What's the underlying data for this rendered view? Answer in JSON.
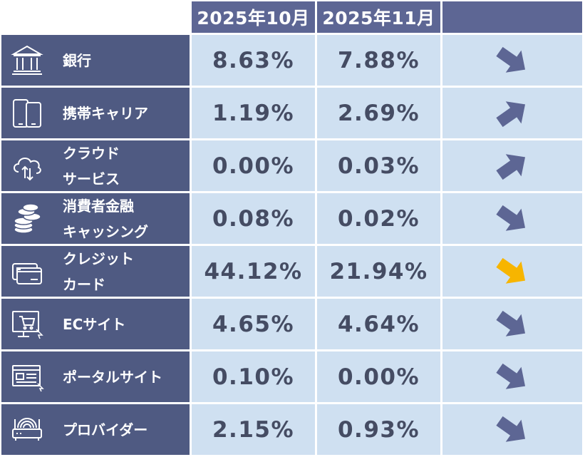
{
  "header": {
    "col1": "2025年10月",
    "col2": "2025年11月",
    "col3": ""
  },
  "colors": {
    "down": "#5d6694",
    "up": "#5d6694",
    "highlight": "#f7b500"
  },
  "rows": [
    {
      "label": "銀行",
      "icon": "bank-icon",
      "oct": "8.63%",
      "nov": "7.88%",
      "trend": "down",
      "highlight": false
    },
    {
      "label": "携帯キャリア",
      "icon": "smartphone-icon",
      "oct": "1.19%",
      "nov": "2.69%",
      "trend": "up",
      "highlight": false
    },
    {
      "label": "クラウド\nサービス",
      "icon": "cloud-sync-icon",
      "oct": "0.00%",
      "nov": "0.03%",
      "trend": "up",
      "highlight": false
    },
    {
      "label": "消費者金融\nキャッシング",
      "icon": "coins-stack-icon",
      "oct": "0.08%",
      "nov": "0.02%",
      "trend": "down",
      "highlight": false
    },
    {
      "label": "クレジット\nカード",
      "icon": "credit-card-icon",
      "oct": "44.12%",
      "nov": "21.94%",
      "trend": "down",
      "highlight": true
    },
    {
      "label": "ECサイト",
      "icon": "shopping-cart-icon",
      "oct": "4.65%",
      "nov": "4.64%",
      "trend": "down",
      "highlight": false
    },
    {
      "label": "ポータルサイト",
      "icon": "web-portal-icon",
      "oct": "0.10%",
      "nov": "0.00%",
      "trend": "down",
      "highlight": false
    },
    {
      "label": "プロバイダー",
      "icon": "router-icon",
      "oct": "2.15%",
      "nov": "0.93%",
      "trend": "down",
      "highlight": false
    }
  ]
}
